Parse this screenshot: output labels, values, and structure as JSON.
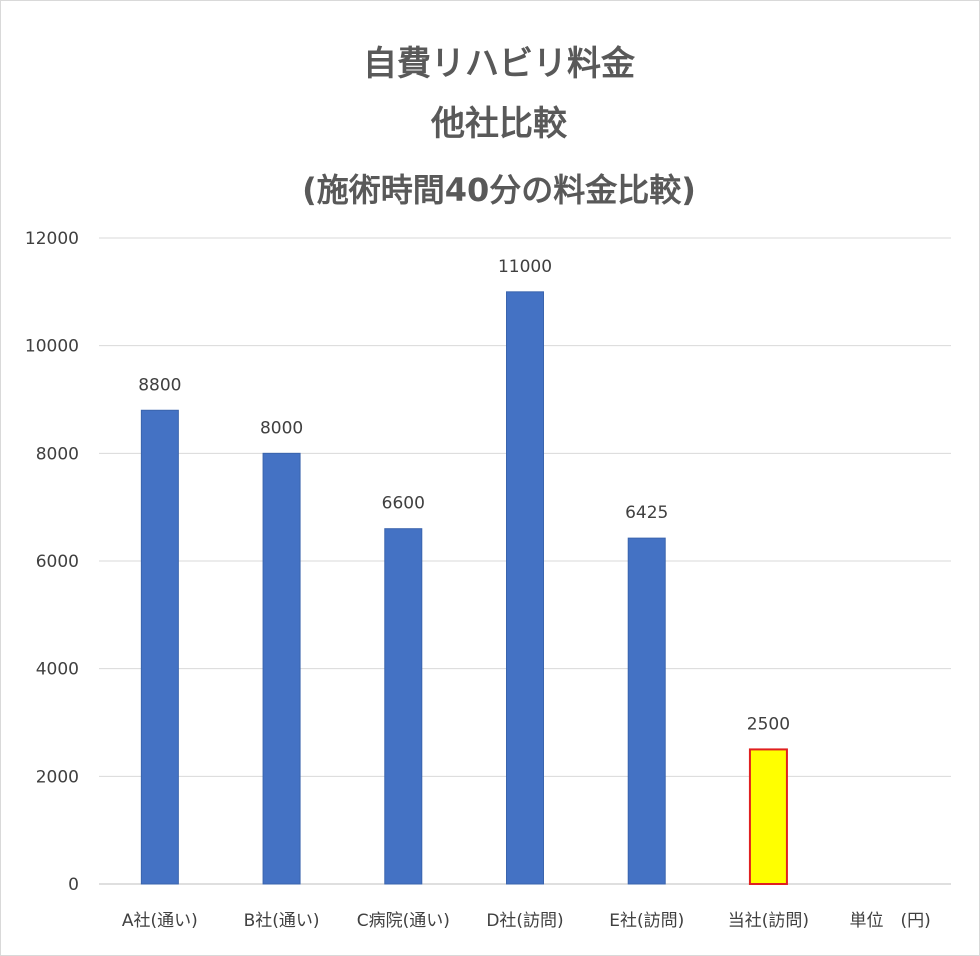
{
  "chart_data": {
    "type": "bar",
    "title_lines": [
      "自費リハビリ料金",
      "他社比較",
      "(施術時間40分の料金比較)"
    ],
    "categories": [
      "A社(通い)",
      "B社(通い)",
      "C病院(通い)",
      "D社(訪問)",
      "E社(訪問)",
      "当社(訪問)",
      "単位　(円)"
    ],
    "values": [
      8800,
      8000,
      6600,
      11000,
      6425,
      2500,
      null
    ],
    "data_labels": [
      "8800",
      "8000",
      "6600",
      "11000",
      "6425",
      "2500",
      ""
    ],
    "y_ticks": [
      "0",
      "2000",
      "4000",
      "6000",
      "8000",
      "10000",
      "12000"
    ],
    "ylim": [
      0,
      12000
    ],
    "grid": true,
    "legend": "none",
    "highlight_index": 5,
    "colors": {
      "bar": "#4472c4",
      "bar_stroke": "#3a64ad",
      "highlight_bar": "#ffff00",
      "highlight_stroke": "#e02020",
      "grid": "#d9d9d9",
      "axis": "#bfbfbf"
    }
  }
}
